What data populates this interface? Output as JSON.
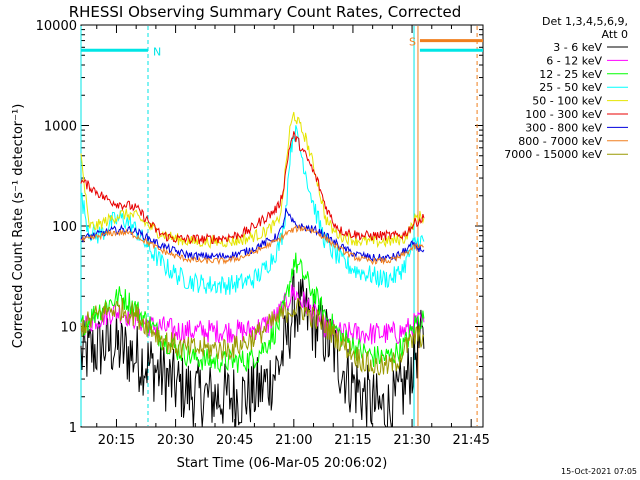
{
  "chart_data": {
    "type": "line",
    "title": "RHESSI Observing Summary Count Rates, Corrected",
    "xlabel": "Start Time (06-Mar-05 20:06:02)",
    "ylabel": "Corrected Count Rate (s⁻¹ detector⁻¹)",
    "x_tick_labels": [
      "20:15",
      "20:30",
      "20:45",
      "21:00",
      "21:15",
      "21:30",
      "21:45"
    ],
    "x_ticks_min": [
      9,
      24,
      39,
      54,
      69,
      84,
      99
    ],
    "xlim_min": [
      0,
      102
    ],
    "y_scale": "log",
    "ylim": [
      1,
      10000
    ],
    "y_tick_labels": [
      "1",
      "10",
      "100",
      "1000",
      "10000"
    ],
    "y_ticks": [
      1,
      10,
      100,
      1000,
      10000
    ],
    "legend_header": [
      "Det 1,3,4,5,6,9,",
      "Att 0"
    ],
    "legend_position": "right",
    "footer_timestamp": "15-Oct-2021 07:05",
    "markers": [
      {
        "label": "N",
        "color": "#00e5e5",
        "x_start": 0,
        "x_end": 17,
        "y": 5600
      },
      {
        "label": "S",
        "color": "#f07f1e",
        "x_start": 86,
        "x_end": 102,
        "y": 7000
      }
    ],
    "night_bar": {
      "color": "#00e5e5",
      "x_start": 86,
      "x_end": 102,
      "y": 5600
    },
    "vlines": [
      {
        "x": 0,
        "color": "#00e5e5",
        "style": "solid"
      },
      {
        "x": 17,
        "color": "#00e5e5",
        "style": "dashed"
      },
      {
        "x": 84.5,
        "color": "#00e5e5",
        "style": "solid"
      },
      {
        "x": 85.5,
        "color": "#f07f1e",
        "style": "solid"
      },
      {
        "x": 100.5,
        "color": "#f07f1e",
        "style": "dashed"
      }
    ],
    "x": [
      0,
      2,
      4,
      6,
      8,
      10,
      12,
      14,
      16,
      18,
      20,
      22,
      24,
      26,
      28,
      30,
      32,
      34,
      36,
      38,
      40,
      42,
      44,
      46,
      48,
      50,
      51,
      52,
      53,
      54,
      55,
      56,
      57,
      58,
      60,
      62,
      64,
      66,
      68,
      70,
      72,
      74,
      76,
      78,
      80,
      82,
      84,
      85,
      86,
      87
    ],
    "series": [
      {
        "name": "3 - 6 keV",
        "color": "#000000",
        "noise": 0.35,
        "values": [
          5,
          5.5,
          6,
          6.5,
          6.5,
          6,
          5.5,
          5,
          4.5,
          4,
          3.5,
          3,
          2.6,
          2.4,
          2.2,
          2.1,
          2.0,
          2.0,
          2.0,
          2.0,
          2.0,
          2.1,
          2.2,
          2.5,
          3,
          4,
          5,
          7,
          10,
          17,
          15,
          14,
          13,
          12,
          10,
          8,
          6,
          4,
          3,
          2.5,
          2,
          1.7,
          1.5,
          1.5,
          1.8,
          2.5,
          4,
          6,
          7,
          6
        ]
      },
      {
        "name": "6 - 12 keV",
        "color": "#ff00ff",
        "noise": 0.12,
        "values": [
          10,
          11,
          12,
          13,
          14,
          14,
          13,
          12,
          11,
          10,
          10,
          9.5,
          9,
          9,
          9,
          9,
          9,
          9,
          9,
          9,
          9,
          9,
          9.5,
          10,
          11,
          13,
          15,
          17,
          20,
          22,
          20,
          18,
          17,
          15,
          12,
          10,
          9,
          8.5,
          8.5,
          8.5,
          8.5,
          8.5,
          8.5,
          8.5,
          8.5,
          9,
          10,
          11,
          11,
          11
        ]
      },
      {
        "name": "12 - 25 keV",
        "color": "#00ff00",
        "noise": 0.12,
        "values": [
          10,
          12,
          14,
          16,
          18,
          20,
          18,
          15,
          12,
          10,
          8,
          7,
          6,
          5.5,
          5,
          4.8,
          4.6,
          4.5,
          4.5,
          4.5,
          4.5,
          4.6,
          5,
          6,
          7.5,
          10,
          13,
          18,
          28,
          45,
          40,
          35,
          30,
          25,
          18,
          13,
          10,
          8,
          7,
          6,
          5.5,
          5,
          5,
          5,
          5.5,
          6.5,
          9,
          11,
          12,
          12
        ]
      },
      {
        "name": "25 - 50 keV",
        "color": "#00ffff",
        "noise": 0.1,
        "values": [
          200,
          90,
          80,
          90,
          110,
          120,
          110,
          90,
          70,
          55,
          45,
          38,
          33,
          30,
          28,
          27,
          26,
          26,
          26,
          26,
          27,
          28,
          30,
          35,
          45,
          60,
          80,
          150,
          500,
          900,
          750,
          500,
          350,
          230,
          120,
          70,
          55,
          45,
          40,
          36,
          34,
          32,
          30,
          30,
          32,
          40,
          60,
          70,
          72,
          70
        ]
      },
      {
        "name": "50 - 100 keV",
        "color": "#e5e500",
        "noise": 0.06,
        "values": [
          500,
          100,
          100,
          110,
          120,
          130,
          130,
          125,
          110,
          95,
          85,
          80,
          75,
          72,
          70,
          70,
          70,
          70,
          70,
          70,
          72,
          75,
          80,
          85,
          95,
          110,
          160,
          400,
          900,
          1300,
          1100,
          900,
          750,
          550,
          280,
          120,
          90,
          80,
          75,
          72,
          70,
          70,
          70,
          70,
          72,
          75,
          100,
          120,
          125,
          120
        ]
      },
      {
        "name": "100 - 300 keV",
        "color": "#e80000",
        "noise": 0.05,
        "values": [
          280,
          250,
          220,
          190,
          175,
          165,
          160,
          150,
          125,
          100,
          85,
          78,
          75,
          74,
          74,
          74,
          74,
          75,
          76,
          78,
          82,
          88,
          100,
          115,
          130,
          155,
          200,
          350,
          650,
          800,
          700,
          580,
          500,
          420,
          280,
          160,
          110,
          90,
          85,
          82,
          80,
          80,
          80,
          80,
          80,
          82,
          100,
          110,
          115,
          120
        ]
      },
      {
        "name": "300 - 800 keV",
        "color": "#0000dd",
        "noise": 0.04,
        "values": [
          75,
          78,
          82,
          86,
          90,
          92,
          92,
          88,
          80,
          72,
          65,
          60,
          56,
          53,
          51,
          50,
          50,
          50,
          50,
          51,
          53,
          56,
          60,
          66,
          72,
          80,
          95,
          140,
          120,
          105,
          100,
          98,
          96,
          94,
          90,
          80,
          70,
          62,
          56,
          52,
          50,
          48,
          48,
          48,
          50,
          56,
          65,
          62,
          60,
          58
        ]
      },
      {
        "name": "800 - 7000 keV",
        "color": "#f07f1e",
        "noise": 0.03,
        "values": [
          72,
          74,
          78,
          82,
          85,
          86,
          85,
          80,
          72,
          65,
          58,
          54,
          50,
          48,
          46,
          45,
          45,
          45,
          45,
          46,
          48,
          51,
          55,
          60,
          66,
          72,
          78,
          84,
          88,
          92,
          94,
          95,
          94,
          92,
          86,
          76,
          66,
          58,
          52,
          48,
          46,
          45,
          45,
          45,
          47,
          52,
          60,
          62,
          62,
          62
        ]
      },
      {
        "name": "7000 - 15000 keV",
        "color": "#999900",
        "noise": 0.12,
        "values": [
          10,
          11,
          13,
          14,
          15,
          15,
          14,
          13,
          11,
          9.5,
          8,
          7,
          6.5,
          6,
          6,
          6,
          6,
          6,
          6,
          6,
          6.5,
          7,
          8,
          9,
          10.5,
          12,
          13,
          14,
          15,
          15,
          15,
          15,
          14,
          13,
          11.5,
          10,
          8.5,
          7,
          6,
          5,
          4.5,
          4,
          4,
          4,
          4.5,
          6,
          7,
          8,
          8,
          8
        ]
      }
    ]
  }
}
